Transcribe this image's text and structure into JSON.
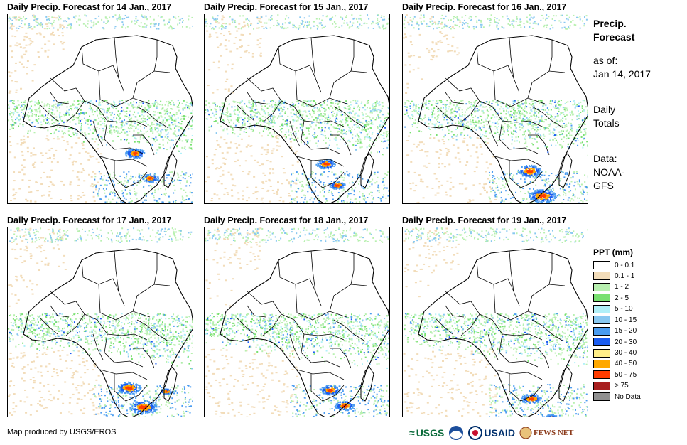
{
  "panels": [
    {
      "title": "Daily Precip. Forecast for 14 Jan., 2017"
    },
    {
      "title": "Daily Precip. Forecast for 15 Jan., 2017"
    },
    {
      "title": "Daily Precip. Forecast for 16 Jan., 2017"
    },
    {
      "title": "Daily Precip. Forecast for 17 Jan., 2017"
    },
    {
      "title": "Daily Precip. Forecast for 18 Jan., 2017"
    },
    {
      "title": "Daily Precip. Forecast for 19 Jan., 2017"
    }
  ],
  "side": {
    "title_line1": "Precip.",
    "title_line2": "Forecast",
    "asof_label": "as of:",
    "asof_date": "Jan 14, 2017",
    "totals_line1": "Daily",
    "totals_line2": "Totals",
    "data_line1": "Data:",
    "data_line2": "NOAA-",
    "data_line3": "GFS"
  },
  "legend": {
    "title": "PPT (mm)",
    "items": [
      {
        "label": "0 - 0.1",
        "color": "#ffffff"
      },
      {
        "label": "0.1 - 1",
        "color": "#f2dcb9"
      },
      {
        "label": "1 - 2",
        "color": "#b8f0b0"
      },
      {
        "label": "2 - 5",
        "color": "#78e070"
      },
      {
        "label": "5 - 10",
        "color": "#b0f0f8"
      },
      {
        "label": "10 - 15",
        "color": "#88c8f0"
      },
      {
        "label": "15 - 20",
        "color": "#4a9cf0"
      },
      {
        "label": "20 - 30",
        "color": "#1a5cf0"
      },
      {
        "label": "30 - 40",
        "color": "#ffee88"
      },
      {
        "label": "40 - 50",
        "color": "#ffa800"
      },
      {
        "label": "50 - 75",
        "color": "#ff3c00"
      },
      {
        "label": "> 75",
        "color": "#a82020"
      },
      {
        "label": "No Data",
        "color": "#909090"
      }
    ]
  },
  "footer": {
    "credit": "Map produced by USGS/EROS"
  },
  "logos": {
    "usgs": "USGS",
    "usaid": "USAID",
    "fewsnet": "FEWS NET"
  }
}
